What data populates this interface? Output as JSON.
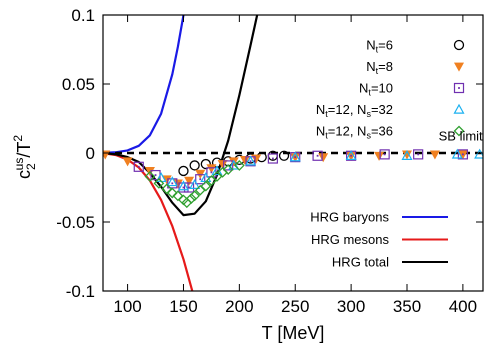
{
  "chart_data": {
    "type": "scatter",
    "xlabel": "T [MeV]",
    "ylabel": "c2us/T2",
    "ylabel_parts": {
      "base": "c",
      "sub": "2",
      "sup": "us",
      "slash": "/T",
      "sup2": "2"
    },
    "xlim": [
      78,
      418
    ],
    "ylim": [
      -0.1,
      0.1
    ],
    "xticks": [
      100,
      150,
      200,
      250,
      300,
      350,
      400
    ],
    "yticks": [
      -0.1,
      -0.05,
      0,
      0.05,
      0.1
    ],
    "xtick_labels": [
      "100",
      "150",
      "200",
      "250",
      "300",
      "350",
      "400"
    ],
    "ytick_labels": [
      "-0.1",
      "-0.05",
      "0",
      "0.05",
      "0.1"
    ],
    "grid": false,
    "legend_position": "top-right",
    "annotations": [
      {
        "text": "SB limit",
        "x": 398,
        "y": 0.009
      }
    ],
    "lines": [
      {
        "name": "HRG baryons",
        "color": "#1a1ae6",
        "x": [
          78,
          90,
          100,
          110,
          120,
          130,
          140,
          145,
          150,
          153
        ],
        "y": [
          0.0001,
          0.0006,
          0.0019,
          0.0052,
          0.0128,
          0.0285,
          0.057,
          0.077,
          0.1,
          0.115
        ]
      },
      {
        "name": "HRG mesons",
        "color": "#e61a1a",
        "x": [
          78,
          90,
          100,
          110,
          120,
          130,
          140,
          150,
          160,
          163
        ],
        "y": [
          -0.0001,
          -0.0016,
          -0.0048,
          -0.0105,
          -0.02,
          -0.034,
          -0.053,
          -0.077,
          -0.106,
          -0.115
        ]
      },
      {
        "name": "HRG total",
        "color": "#000000",
        "x": [
          78,
          90,
          100,
          110,
          120,
          130,
          140,
          150,
          160,
          170,
          180,
          190,
          200,
          210,
          220
        ],
        "y": [
          0.0,
          -0.001,
          -0.003,
          -0.0065,
          -0.0145,
          -0.0245,
          -0.036,
          -0.045,
          -0.044,
          -0.035,
          -0.016,
          0.009,
          0.042,
          0.078,
          0.115
        ]
      },
      {
        "name": "SB limit",
        "color": "#000000",
        "dashed": true,
        "x": [
          78,
          418
        ],
        "y": [
          0,
          0
        ]
      }
    ],
    "series": [
      {
        "name": "N_t=6",
        "label": "Nt=6",
        "marker": "circle",
        "color": "#000000",
        "x": [
          150,
          160,
          170,
          180,
          190,
          200,
          210,
          220,
          230,
          240
        ],
        "y": [
          -0.013,
          -0.009,
          -0.008,
          -0.007,
          -0.006,
          -0.005,
          -0.004,
          -0.003,
          -0.002,
          -0.002
        ]
      },
      {
        "name": "N_t=8",
        "label": "Nt=8",
        "marker": "triangle-down",
        "color": "#f08020",
        "x": [
          80,
          100,
          120,
          135,
          145,
          155,
          165,
          175,
          185,
          195,
          205,
          215,
          250,
          275,
          300,
          325,
          350,
          375,
          400
        ],
        "y": [
          -0.001,
          -0.006,
          -0.013,
          -0.019,
          -0.022,
          -0.02,
          -0.015,
          -0.011,
          -0.008,
          -0.006,
          -0.005,
          -0.004,
          -0.003,
          -0.003,
          -0.002,
          -0.002,
          -0.001,
          -0.001,
          -0.001
        ]
      },
      {
        "name": "N_t=10",
        "label": "Nt=10",
        "marker": "square",
        "color": "#7030b0",
        "x": [
          110,
          125,
          140,
          150,
          155,
          165,
          175,
          190,
          210,
          230,
          250,
          270,
          300,
          330,
          360,
          400
        ],
        "y": [
          -0.01,
          -0.016,
          -0.022,
          -0.025,
          -0.025,
          -0.019,
          -0.014,
          -0.009,
          -0.006,
          -0.004,
          -0.003,
          -0.002,
          -0.002,
          -0.001,
          -0.001,
          -0.001
        ]
      },
      {
        "name": "N_t=12, N_s=32",
        "label": "Nt=12, Ns=32",
        "marker": "triangle-up",
        "color": "#1ab0f0",
        "x": [
          130,
          140,
          150,
          160,
          170,
          180,
          195,
          210,
          250,
          300,
          350,
          395,
          415
        ],
        "y": [
          -0.018,
          -0.021,
          -0.024,
          -0.023,
          -0.018,
          -0.013,
          -0.009,
          -0.006,
          -0.003,
          -0.002,
          -0.002,
          -0.001,
          -0.001
        ]
      },
      {
        "name": "N_t=12, N_s=36",
        "label": "Nt=12, Ns=36",
        "marker": "diamond",
        "color": "#30a030",
        "x": [
          120,
          128,
          135,
          140,
          145,
          150,
          153,
          157,
          160,
          165,
          170,
          175,
          180,
          185,
          190,
          200
        ],
        "y": [
          -0.017,
          -0.022,
          -0.026,
          -0.029,
          -0.031,
          -0.034,
          -0.036,
          -0.033,
          -0.031,
          -0.027,
          -0.024,
          -0.02,
          -0.017,
          -0.014,
          -0.012,
          -0.009
        ]
      }
    ]
  }
}
